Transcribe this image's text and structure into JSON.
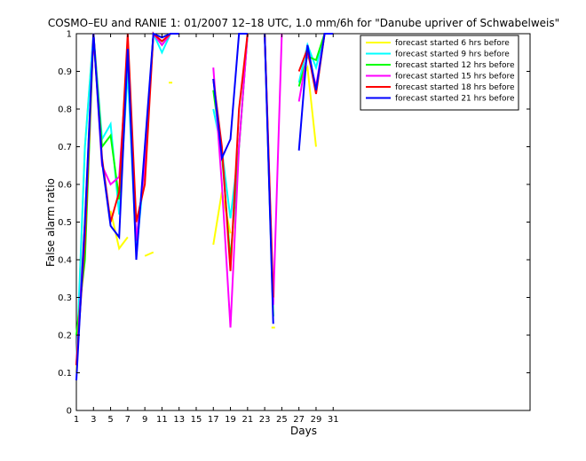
{
  "chart_data": {
    "type": "line",
    "title": "COSMO–EU and RANIE 1: 01/2007 12–18 UTC, 1.0 mm/6h for \"Danube upriver of Schwabelweis\"",
    "xlabel": "Days",
    "ylabel": "False alarm ratio",
    "xlim": [
      1,
      54
    ],
    "ylim": [
      0,
      1
    ],
    "xticks": [
      1,
      3,
      5,
      7,
      9,
      11,
      13,
      15,
      17,
      19,
      21,
      23,
      25,
      27,
      29,
      31
    ],
    "yticks": [
      0,
      0.1,
      0.2,
      0.3,
      0.4,
      0.5,
      0.6,
      0.7,
      0.8,
      0.9,
      1
    ],
    "ytick_labels": [
      "0",
      "0.1",
      "0.2",
      "0.3",
      "0.4",
      "0.5",
      "0.6",
      "0.7",
      "0.8",
      "0.9",
      "1"
    ],
    "grid": false,
    "legend_position": "top-right",
    "series": [
      {
        "name": "forecast started 6 hrs before",
        "color": "#ffff00",
        "values": [
          0.1,
          0.7,
          1.0,
          null,
          0.53,
          0.43,
          0.46,
          null,
          0.41,
          0.42,
          null,
          0.87,
          null,
          null,
          null,
          null,
          0.44,
          0.58,
          0.47,
          null,
          null,
          null,
          null,
          0.22,
          null,
          null,
          0.87,
          0.91,
          0.7,
          null,
          null
        ]
      },
      {
        "name": "forecast started 9 hrs before",
        "color": "#00ffff",
        "values": [
          0.12,
          0.7,
          1.0,
          0.72,
          0.76,
          0.52,
          0.9,
          0.42,
          0.65,
          1.0,
          0.95,
          1.0,
          1.0,
          null,
          null,
          null,
          0.8,
          0.69,
          0.51,
          0.7,
          1.0,
          null,
          1.0,
          0.25,
          null,
          null,
          0.87,
          0.97,
          0.91,
          1.0,
          1.0
        ]
      },
      {
        "name": "forecast started 12 hrs before",
        "color": "#00ff00",
        "values": [
          0.2,
          0.4,
          1.0,
          0.7,
          0.73,
          0.56,
          0.95,
          0.45,
          0.65,
          1.0,
          0.97,
          1.0,
          1.0,
          null,
          null,
          null,
          0.85,
          0.68,
          0.4,
          0.7,
          1.0,
          null,
          1.0,
          0.25,
          null,
          null,
          0.86,
          0.94,
          0.93,
          1.0,
          1.0
        ]
      },
      {
        "name": "forecast started 15 hrs before",
        "color": "#ff00ff",
        "values": [
          0.12,
          0.5,
          1.0,
          0.65,
          0.6,
          0.62,
          0.95,
          0.45,
          0.65,
          1.0,
          0.97,
          1.0,
          1.0,
          null,
          null,
          null,
          0.91,
          0.6,
          0.22,
          0.7,
          1.0,
          null,
          1.0,
          0.28,
          1.0,
          null,
          0.82,
          0.95,
          0.86,
          1.0,
          1.0
        ]
      },
      {
        "name": "forecast started 18 hrs before",
        "color": "#ff0000",
        "values": [
          0.12,
          0.45,
          1.0,
          0.67,
          0.5,
          0.58,
          1.0,
          0.5,
          0.6,
          1.0,
          0.98,
          1.0,
          1.0,
          null,
          null,
          null,
          0.88,
          0.7,
          0.37,
          0.8,
          1.0,
          null,
          1.0,
          0.3,
          null,
          null,
          0.9,
          0.96,
          0.84,
          1.0,
          1.0
        ]
      },
      {
        "name": "forecast started 21 hrs before",
        "color": "#0000ff",
        "values": [
          0.08,
          0.5,
          1.0,
          0.66,
          0.49,
          0.46,
          0.96,
          0.4,
          0.7,
          1.0,
          0.99,
          1.0,
          1.0,
          null,
          null,
          null,
          0.88,
          0.67,
          0.72,
          1.0,
          1.0,
          null,
          1.0,
          0.23,
          null,
          null,
          0.69,
          0.97,
          0.85,
          1.0,
          1.0
        ]
      }
    ]
  }
}
